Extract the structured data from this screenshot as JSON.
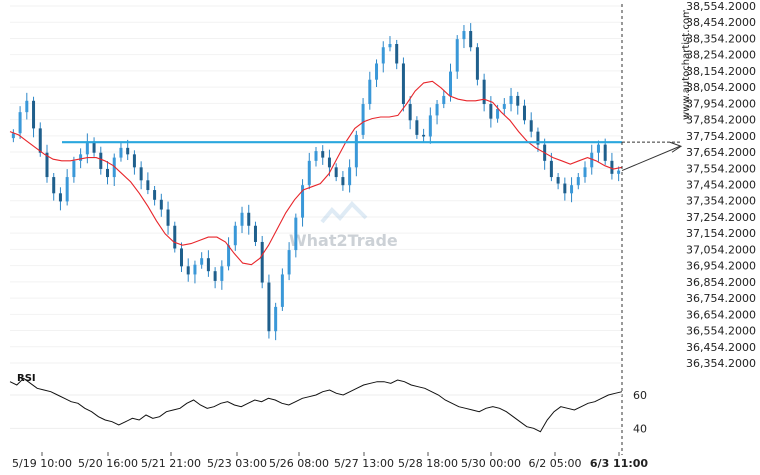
{
  "watermark": "What2Trade",
  "source_label": "www.autochartist.com",
  "chart_data": [
    {
      "type": "candlestick",
      "title": "",
      "price_ticks": [
        "38,554.2000",
        "38,454.2000",
        "38,354.2000",
        "38,254.2000",
        "38,154.2000",
        "38,054.2000",
        "37,954.2000",
        "37,854.2000",
        "37,754.2000",
        "37,654.2000",
        "37,554.2000",
        "37,454.2000",
        "37,354.2000",
        "37,254.2000",
        "37,154.2000",
        "37,054.2000",
        "36,954.2000",
        "36,854.2000",
        "36,754.2000",
        "36,654.2000",
        "36,554.2000",
        "36,454.2000",
        "36,354.2000"
      ],
      "ylim": [
        36354.2,
        38554.2
      ],
      "x_ticks": [
        "5/19 10:00",
        "5/20 16:00",
        "5/21 21:00",
        "5/23 03:00",
        "5/26 08:00",
        "5/27 13:00",
        "5/28 18:00",
        "5/30 00:00",
        "6/2 05:00",
        "6/3 11:00"
      ],
      "resistance_level": 37715,
      "projected_level": 37690,
      "close_series_approx": [
        37770,
        37900,
        37970,
        37800,
        37650,
        37500,
        37400,
        37350,
        37500,
        37600,
        37640,
        37720,
        37650,
        37550,
        37500,
        37620,
        37680,
        37640,
        37560,
        37480,
        37420,
        37360,
        37300,
        37200,
        37060,
        36950,
        36900,
        36960,
        37000,
        36920,
        36860,
        36950,
        37080,
        37200,
        37280,
        37200,
        37100,
        36850,
        36550,
        36700,
        36900,
        37050,
        37250,
        37450,
        37600,
        37660,
        37620,
        37560,
        37500,
        37450,
        37560,
        37760,
        37950,
        38100,
        38200,
        38300,
        38320,
        38200,
        37950,
        37850,
        37760,
        37750,
        37880,
        37950,
        38000,
        38150,
        38350,
        38400,
        38300,
        38100,
        37950,
        37860,
        37920,
        37950,
        38000,
        37940,
        37850,
        37780,
        37700,
        37600,
        37500,
        37460,
        37400,
        37450,
        37500,
        37560,
        37650,
        37700,
        37600,
        37520,
        37540
      ],
      "ma_series_approx": [
        37780,
        37760,
        37720,
        37680,
        37640,
        37610,
        37600,
        37600,
        37610,
        37620,
        37620,
        37600,
        37570,
        37520,
        37470,
        37400,
        37320,
        37230,
        37150,
        37100,
        37080,
        37090,
        37110,
        37130,
        37130,
        37100,
        37030,
        36970,
        36960,
        37000,
        37080,
        37180,
        37280,
        37360,
        37420,
        37440,
        37460,
        37520,
        37620,
        37720,
        37800,
        37840,
        37860,
        37870,
        37870,
        37880,
        37950,
        38030,
        38080,
        38090,
        38050,
        38000,
        37980,
        37970,
        37970,
        37980,
        37960,
        37900,
        37850,
        37780,
        37720,
        37680,
        37650,
        37620,
        37600,
        37580,
        37600,
        37620,
        37600,
        37570,
        37550,
        37560
      ]
    },
    {
      "type": "line",
      "name": "RSI",
      "label": "RSI",
      "y_ticks": [
        "60",
        "40"
      ],
      "ylim": [
        30,
        75
      ],
      "values_approx": [
        68,
        66,
        70,
        67,
        64,
        63,
        62,
        60,
        58,
        56,
        55,
        52,
        50,
        47,
        45,
        44,
        42,
        44,
        46,
        45,
        48,
        46,
        47,
        50,
        51,
        52,
        55,
        57,
        54,
        52,
        53,
        55,
        56,
        54,
        53,
        55,
        57,
        56,
        58,
        57,
        55,
        54,
        56,
        58,
        59,
        60,
        62,
        63,
        61,
        60,
        62,
        64,
        66,
        67,
        68,
        68,
        67,
        69,
        68,
        66,
        65,
        64,
        62,
        60,
        57,
        55,
        53,
        52,
        51,
        50,
        52,
        53,
        52,
        50,
        47,
        44,
        41,
        40,
        38,
        45,
        50,
        53,
        52,
        51,
        53,
        55,
        56,
        58,
        60,
        61,
        62
      ]
    }
  ]
}
